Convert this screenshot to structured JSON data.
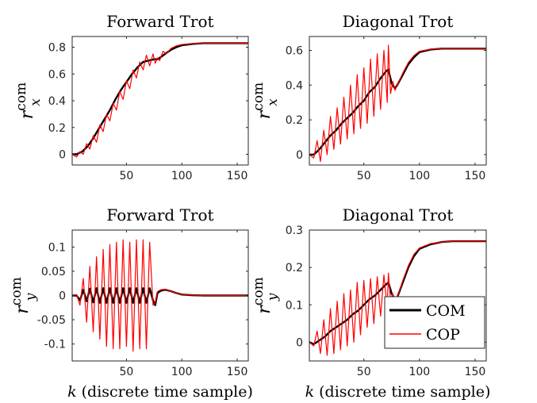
{
  "figure": {
    "legend": {
      "placement": "bottom-right of bottom-right panel",
      "entries": [
        {
          "label": "COM",
          "color": "#000000"
        },
        {
          "label": "COP",
          "color": "#ff0000"
        }
      ]
    }
  },
  "chart_data": [
    {
      "type": "line",
      "title": "Forward Trot",
      "ylabel_main": "r",
      "ylabel_sup": "com",
      "ylabel_sub": "x",
      "xlabel": "",
      "xlim": [
        1,
        160
      ],
      "ylim": [
        -0.08,
        0.88
      ],
      "xticks": [
        50,
        100,
        150
      ],
      "yticks": [
        0,
        0.2,
        0.4,
        0.6,
        0.8
      ],
      "ytick_labels": [
        "0",
        "0.2",
        "0.4",
        "0.6",
        "0.8"
      ],
      "series": [
        {
          "name": "COM",
          "color": "#000000",
          "x": [
            1,
            5,
            10,
            15,
            20,
            25,
            30,
            35,
            40,
            45,
            50,
            55,
            60,
            65,
            70,
            75,
            78,
            80,
            85,
            90,
            95,
            100,
            110,
            120,
            130,
            140,
            150,
            160
          ],
          "y": [
            0.0,
            0.0,
            0.02,
            0.06,
            0.12,
            0.19,
            0.26,
            0.33,
            0.41,
            0.48,
            0.54,
            0.6,
            0.65,
            0.69,
            0.7,
            0.71,
            0.71,
            0.72,
            0.75,
            0.78,
            0.8,
            0.815,
            0.825,
            0.83,
            0.83,
            0.83,
            0.83,
            0.83
          ]
        },
        {
          "name": "COP",
          "color": "#ff0000",
          "x": [
            1,
            5,
            8,
            11,
            14,
            17,
            20,
            23,
            26,
            29,
            32,
            35,
            38,
            41,
            44,
            47,
            50,
            53,
            56,
            59,
            62,
            65,
            68,
            71,
            74,
            76,
            78,
            80,
            83,
            86,
            90,
            95,
            100,
            110,
            120,
            130,
            140,
            150,
            160
          ],
          "y": [
            0.0,
            -0.02,
            0.02,
            0.0,
            0.08,
            0.04,
            0.14,
            0.09,
            0.22,
            0.17,
            0.3,
            0.25,
            0.38,
            0.33,
            0.47,
            0.41,
            0.55,
            0.49,
            0.63,
            0.57,
            0.69,
            0.63,
            0.74,
            0.66,
            0.75,
            0.68,
            0.72,
            0.7,
            0.77,
            0.75,
            0.79,
            0.81,
            0.82,
            0.828,
            0.83,
            0.83,
            0.83,
            0.83,
            0.83
          ]
        }
      ]
    },
    {
      "type": "line",
      "title": "Diagonal Trot",
      "ylabel_main": "r",
      "ylabel_sup": "com",
      "ylabel_sub": "x",
      "xlabel": "",
      "xlim": [
        1,
        160
      ],
      "ylim": [
        -0.06,
        0.68
      ],
      "xticks": [
        50,
        100,
        150
      ],
      "yticks": [
        0,
        0.2,
        0.4,
        0.6
      ],
      "ytick_labels": [
        "0",
        "0.2",
        "0.4",
        "0.6"
      ],
      "series": [
        {
          "name": "COM",
          "color": "#000000",
          "x": [
            1,
            5,
            10,
            15,
            20,
            25,
            30,
            35,
            40,
            45,
            50,
            55,
            60,
            65,
            70,
            72,
            75,
            78,
            80,
            85,
            90,
            95,
            100,
            110,
            120,
            130,
            140,
            150,
            160
          ],
          "y": [
            0.0,
            0.0,
            0.03,
            0.07,
            0.11,
            0.14,
            0.18,
            0.21,
            0.24,
            0.28,
            0.31,
            0.36,
            0.39,
            0.44,
            0.48,
            0.49,
            0.41,
            0.38,
            0.4,
            0.46,
            0.52,
            0.56,
            0.59,
            0.605,
            0.61,
            0.61,
            0.61,
            0.61,
            0.61
          ]
        },
        {
          "name": "COP",
          "color": "#ff0000",
          "x": [
            1,
            5,
            8,
            11,
            14,
            17,
            20,
            23,
            26,
            29,
            32,
            35,
            38,
            41,
            44,
            47,
            50,
            53,
            56,
            59,
            62,
            65,
            68,
            71,
            72,
            74,
            76,
            78,
            80,
            85,
            90,
            95,
            100,
            110,
            120,
            130,
            140,
            150,
            160
          ],
          "y": [
            0.0,
            -0.02,
            0.08,
            -0.04,
            0.14,
            0.0,
            0.22,
            0.03,
            0.27,
            0.06,
            0.33,
            0.09,
            0.4,
            0.12,
            0.46,
            0.15,
            0.5,
            0.18,
            0.55,
            0.22,
            0.58,
            0.26,
            0.6,
            0.3,
            0.63,
            0.35,
            0.42,
            0.37,
            0.4,
            0.47,
            0.53,
            0.57,
            0.595,
            0.607,
            0.61,
            0.61,
            0.61,
            0.61,
            0.61
          ]
        }
      ]
    },
    {
      "type": "line",
      "title": "Forward Trot",
      "ylabel_main": "r",
      "ylabel_sup": "com",
      "ylabel_sub": "y",
      "xlabel": "k (discrete time sample)",
      "xlim": [
        1,
        160
      ],
      "ylim": [
        -0.135,
        0.135
      ],
      "xticks": [
        50,
        100,
        150
      ],
      "yticks": [
        -0.1,
        -0.05,
        0,
        0.05,
        0.1
      ],
      "ytick_labels": [
        "-0.1",
        "-0.05",
        "0",
        "0.05",
        "0.1"
      ],
      "series": [
        {
          "name": "COM",
          "color": "#000000",
          "x": [
            1,
            5,
            8,
            11,
            14,
            17,
            20,
            23,
            26,
            29,
            32,
            35,
            38,
            41,
            44,
            47,
            50,
            53,
            56,
            59,
            62,
            65,
            68,
            71,
            74,
            76,
            78,
            81,
            85,
            90,
            95,
            100,
            110,
            120,
            130,
            140,
            150,
            160
          ],
          "y": [
            0.0,
            0.0,
            -0.01,
            0.012,
            -0.012,
            0.014,
            -0.014,
            0.015,
            -0.015,
            0.015,
            -0.015,
            0.015,
            -0.015,
            0.015,
            -0.015,
            0.015,
            -0.015,
            0.015,
            -0.015,
            0.015,
            -0.015,
            0.015,
            -0.015,
            0.015,
            -0.01,
            -0.02,
            0.005,
            0.01,
            0.012,
            0.009,
            0.005,
            0.002,
            0.0005,
            0.0,
            0.0,
            0.0,
            0.0,
            0.0
          ]
        },
        {
          "name": "COP",
          "color": "#ff0000",
          "x": [
            1,
            5,
            8,
            11,
            14,
            17,
            20,
            23,
            26,
            29,
            32,
            35,
            38,
            41,
            44,
            47,
            50,
            53,
            56,
            59,
            62,
            65,
            68,
            71,
            74,
            76,
            78,
            81,
            85,
            90,
            95,
            100,
            110,
            120,
            130,
            140,
            150,
            160
          ],
          "y": [
            0.0,
            0.002,
            -0.02,
            0.035,
            -0.055,
            0.06,
            -0.075,
            0.08,
            -0.09,
            0.095,
            -0.105,
            0.105,
            -0.11,
            0.11,
            -0.11,
            0.115,
            -0.105,
            0.11,
            -0.115,
            0.115,
            -0.11,
            0.115,
            -0.11,
            0.11,
            -0.02,
            -0.015,
            0.008,
            0.012,
            0.013,
            0.009,
            0.005,
            0.002,
            0.0005,
            0.0,
            0.0,
            0.0,
            0.0,
            0.0
          ]
        }
      ]
    },
    {
      "type": "line",
      "title": "Diagonal Trot",
      "ylabel_main": "r",
      "ylabel_sup": "com",
      "ylabel_sub": "y",
      "xlabel": "k (discrete time sample)",
      "xlim": [
        1,
        160
      ],
      "ylim": [
        -0.05,
        0.3
      ],
      "xticks": [
        50,
        100,
        150
      ],
      "yticks": [
        0,
        0.1,
        0.2,
        0.3
      ],
      "ytick_labels": [
        "0",
        "0.1",
        "0.2",
        "0.3"
      ],
      "series": [
        {
          "name": "COM",
          "color": "#000000",
          "x": [
            1,
            5,
            10,
            15,
            20,
            25,
            30,
            35,
            40,
            45,
            50,
            55,
            60,
            65,
            70,
            72,
            75,
            78,
            80,
            85,
            90,
            95,
            100,
            110,
            120,
            130,
            140,
            150,
            160
          ],
          "y": [
            0.0,
            -0.005,
            0.005,
            0.015,
            0.03,
            0.04,
            0.05,
            0.06,
            0.075,
            0.085,
            0.1,
            0.115,
            0.125,
            0.14,
            0.155,
            0.16,
            0.13,
            0.115,
            0.12,
            0.16,
            0.2,
            0.23,
            0.25,
            0.262,
            0.268,
            0.27,
            0.27,
            0.27,
            0.27
          ]
        },
        {
          "name": "COP",
          "color": "#ff0000",
          "x": [
            1,
            5,
            8,
            11,
            14,
            17,
            20,
            23,
            26,
            29,
            32,
            35,
            38,
            41,
            44,
            47,
            50,
            53,
            56,
            59,
            62,
            65,
            68,
            71,
            72,
            74,
            76,
            78,
            80,
            85,
            90,
            95,
            100,
            110,
            120,
            130,
            140,
            150,
            160
          ],
          "y": [
            0.0,
            -0.01,
            0.03,
            -0.03,
            0.06,
            -0.035,
            0.09,
            -0.03,
            0.11,
            -0.02,
            0.13,
            -0.01,
            0.14,
            0.0,
            0.16,
            0.02,
            0.165,
            0.04,
            0.17,
            0.05,
            0.175,
            0.07,
            0.18,
            0.09,
            0.185,
            0.11,
            0.13,
            0.11,
            0.12,
            0.165,
            0.205,
            0.235,
            0.252,
            0.264,
            0.268,
            0.27,
            0.27,
            0.27,
            0.27
          ]
        }
      ]
    }
  ]
}
